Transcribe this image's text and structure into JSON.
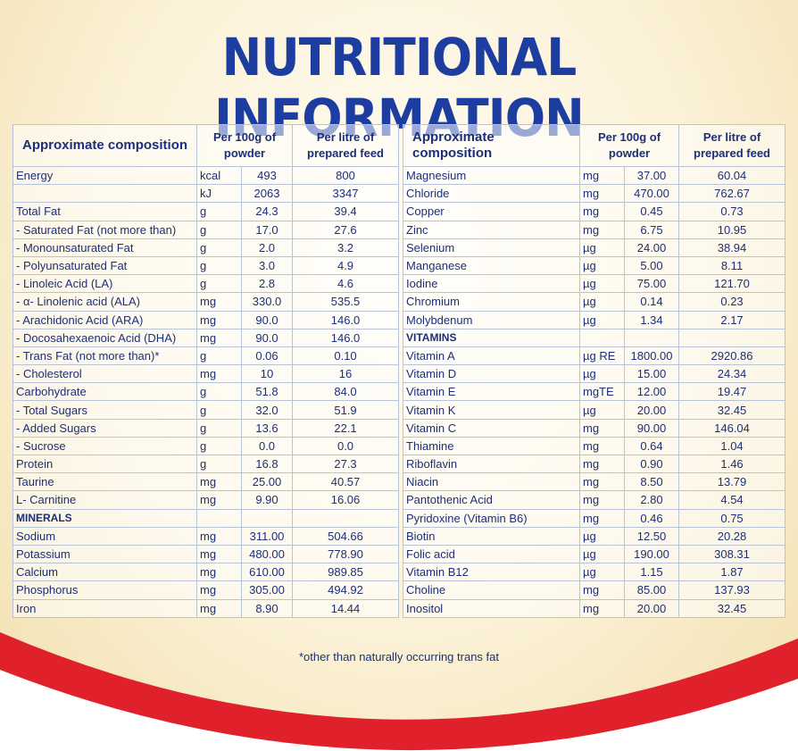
{
  "title": "NUTRITIONAL INFORMATION",
  "headers": {
    "composition": "Approximate composition",
    "per100g": "Per 100g of powder",
    "perLitre": "Per litre of prepared feed"
  },
  "left_rows": [
    {
      "name": "Energy",
      "unit": "kcal",
      "per100g": "493",
      "perLitre": "800"
    },
    {
      "name": "",
      "unit": "kJ",
      "per100g": "2063",
      "perLitre": "3347"
    },
    {
      "name": "Total Fat",
      "unit": "g",
      "per100g": "24.3",
      "perLitre": "39.4"
    },
    {
      "name": "- Saturated Fat (not more than)",
      "unit": "g",
      "per100g": "17.0",
      "perLitre": "27.6"
    },
    {
      "name": "- Monounsaturated Fat",
      "unit": "g",
      "per100g": "2.0",
      "perLitre": "3.2"
    },
    {
      "name": "- Polyunsaturated Fat",
      "unit": "g",
      "per100g": "3.0",
      "perLitre": "4.9"
    },
    {
      "name": "- Linoleic Acid (LA)",
      "unit": "g",
      "per100g": "2.8",
      "perLitre": "4.6"
    },
    {
      "name": "- α- Linolenic acid (ALA)",
      "unit": "mg",
      "per100g": "330.0",
      "perLitre": "535.5"
    },
    {
      "name": "- Arachidonic Acid (ARA)",
      "unit": "mg",
      "per100g": "90.0",
      "perLitre": "146.0"
    },
    {
      "name": "- Docosahexaenoic Acid (DHA)",
      "unit": "mg",
      "per100g": "90.0",
      "perLitre": "146.0"
    },
    {
      "name": "- Trans Fat (not more than)*",
      "unit": "g",
      "per100g": "0.06",
      "perLitre": "0.10"
    },
    {
      "name": "- Cholesterol",
      "unit": "mg",
      "per100g": "10",
      "perLitre": "16"
    },
    {
      "name": "Carbohydrate",
      "unit": "g",
      "per100g": "51.8",
      "perLitre": "84.0"
    },
    {
      "name": "- Total Sugars",
      "unit": "g",
      "per100g": "32.0",
      "perLitre": "51.9"
    },
    {
      "name": "- Added Sugars",
      "unit": "g",
      "per100g": "13.6",
      "perLitre": "22.1"
    },
    {
      "name": "- Sucrose",
      "unit": "g",
      "per100g": "0.0",
      "perLitre": "0.0"
    },
    {
      "name": "Protein",
      "unit": "g",
      "per100g": "16.8",
      "perLitre": "27.3"
    },
    {
      "name": "Taurine",
      "unit": "mg",
      "per100g": "25.00",
      "perLitre": "40.57"
    },
    {
      "name": "L- Carnitine",
      "unit": "mg",
      "per100g": "9.90",
      "perLitre": "16.06"
    },
    {
      "name": "MINERALS",
      "unit": "",
      "per100g": "",
      "perLitre": "",
      "section": true
    },
    {
      "name": "Sodium",
      "unit": "mg",
      "per100g": "311.00",
      "perLitre": "504.66"
    },
    {
      "name": "Potassium",
      "unit": "mg",
      "per100g": "480.00",
      "perLitre": "778.90"
    },
    {
      "name": "Calcium",
      "unit": "mg",
      "per100g": "610.00",
      "perLitre": "989.85"
    },
    {
      "name": "Phosphorus",
      "unit": "mg",
      "per100g": "305.00",
      "perLitre": "494.92"
    },
    {
      "name": "Iron",
      "unit": "mg",
      "per100g": "8.90",
      "perLitre": "14.44"
    }
  ],
  "right_rows": [
    {
      "name": "Magnesium",
      "unit": "mg",
      "per100g": "37.00",
      "perLitre": "60.04"
    },
    {
      "name": "Chloride",
      "unit": "mg",
      "per100g": "470.00",
      "perLitre": "762.67"
    },
    {
      "name": "Copper",
      "unit": "mg",
      "per100g": "0.45",
      "perLitre": "0.73"
    },
    {
      "name": "Zinc",
      "unit": "mg",
      "per100g": "6.75",
      "perLitre": "10.95"
    },
    {
      "name": "Selenium",
      "unit": "µg",
      "per100g": "24.00",
      "perLitre": "38.94"
    },
    {
      "name": "Manganese",
      "unit": "µg",
      "per100g": "5.00",
      "perLitre": "8.11"
    },
    {
      "name": "Iodine",
      "unit": "µg",
      "per100g": "75.00",
      "perLitre": "121.70"
    },
    {
      "name": "Chromium",
      "unit": "µg",
      "per100g": "0.14",
      "perLitre": "0.23"
    },
    {
      "name": "Molybdenum",
      "unit": "µg",
      "per100g": "1.34",
      "perLitre": "2.17"
    },
    {
      "name": "VITAMINS",
      "unit": "",
      "per100g": "",
      "perLitre": "",
      "section": true
    },
    {
      "name": "Vitamin A",
      "unit": "µg RE",
      "per100g": "1800.00",
      "perLitre": "2920.86"
    },
    {
      "name": "Vitamin D",
      "unit": "µg",
      "per100g": "15.00",
      "perLitre": "24.34"
    },
    {
      "name": "Vitamin E",
      "unit": "mgTE",
      "per100g": "12.00",
      "perLitre": "19.47"
    },
    {
      "name": "Vitamin K",
      "unit": "µg",
      "per100g": "20.00",
      "perLitre": "32.45"
    },
    {
      "name": "Vitamin C",
      "unit": "mg",
      "per100g": "90.00",
      "perLitre": "146.04"
    },
    {
      "name": "Thiamine",
      "unit": "mg",
      "per100g": "0.64",
      "perLitre": "1.04"
    },
    {
      "name": "Riboflavin",
      "unit": "mg",
      "per100g": "0.90",
      "perLitre": "1.46"
    },
    {
      "name": "Niacin",
      "unit": "mg",
      "per100g": "8.50",
      "perLitre": "13.79"
    },
    {
      "name": "Pantothenic Acid",
      "unit": "mg",
      "per100g": "2.80",
      "perLitre": "4.54"
    },
    {
      "name": "Pyridoxine (Vitamin B6)",
      "unit": "mg",
      "per100g": "0.46",
      "perLitre": "0.75"
    },
    {
      "name": "Biotin",
      "unit": "µg",
      "per100g": "12.50",
      "perLitre": "20.28"
    },
    {
      "name": "Folic acid",
      "unit": "µg",
      "per100g": "190.00",
      "perLitre": "308.31"
    },
    {
      "name": "Vitamin B12",
      "unit": "µg",
      "per100g": "1.15",
      "perLitre": "1.87"
    },
    {
      "name": "Choline",
      "unit": "mg",
      "per100g": "85.00",
      "perLitre": "137.93"
    },
    {
      "name": "Inositol",
      "unit": "mg",
      "per100g": "20.00",
      "perLitre": "32.45"
    }
  ],
  "footnote": "*other than naturally occurring trans fat",
  "colors": {
    "title": "#1d3ea0",
    "text": "#1c2f78",
    "wave_red": "#e0202a",
    "grid": "#b9c3d8"
  }
}
